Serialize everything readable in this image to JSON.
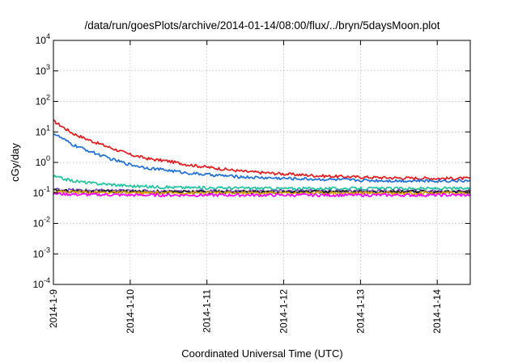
{
  "chart_data": {
    "type": "line",
    "title": "/data/run/goesPlots/archive/2014-01-14/08:00/flux/../bryn/5daysMoon.plot",
    "xlabel": "Coordinated Universal Time (UTC)",
    "ylabel": "cGy/day",
    "yscale": "log",
    "ylim": [
      0.0001,
      10000
    ],
    "xlim": [
      0,
      5.43
    ],
    "grid": true,
    "legend": "none",
    "x_ticks": [
      {
        "value": 0,
        "label": "2014-1-9"
      },
      {
        "value": 1,
        "label": "2014-1-10"
      },
      {
        "value": 2,
        "label": "2014-1-11"
      },
      {
        "value": 3,
        "label": "2014-1-12"
      },
      {
        "value": 4,
        "label": "2014-1-13"
      },
      {
        "value": 5,
        "label": "2014-1-14"
      }
    ],
    "y_ticks": [
      {
        "value": 0.0001,
        "base": "10",
        "exp": "-4"
      },
      {
        "value": 0.001,
        "base": "10",
        "exp": "-3"
      },
      {
        "value": 0.01,
        "base": "10",
        "exp": "-2"
      },
      {
        "value": 0.1,
        "base": "10",
        "exp": "-1"
      },
      {
        "value": 1,
        "base": "10",
        "exp": "0"
      },
      {
        "value": 10,
        "base": "10",
        "exp": "1"
      },
      {
        "value": 100,
        "base": "10",
        "exp": "2"
      },
      {
        "value": 1000,
        "base": "10",
        "exp": "3"
      },
      {
        "value": 10000,
        "base": "10",
        "exp": "4"
      }
    ],
    "x": [
      0,
      0.25,
      0.5,
      0.75,
      1,
      1.25,
      1.5,
      1.75,
      2,
      2.5,
      3,
      3.5,
      4,
      4.5,
      5,
      5.43
    ],
    "series": [
      {
        "color": "#e41a1c",
        "values": [
          23,
          9,
          5,
          3,
          1.8,
          1.3,
          1.1,
          0.85,
          0.7,
          0.5,
          0.42,
          0.36,
          0.33,
          0.31,
          0.3,
          0.3
        ]
      },
      {
        "color": "#1f6fd8",
        "values": [
          9,
          3.8,
          2.2,
          1.3,
          0.85,
          0.65,
          0.55,
          0.45,
          0.4,
          0.33,
          0.3,
          0.28,
          0.26,
          0.25,
          0.25,
          0.25
        ]
      },
      {
        "color": "#1fc4a0",
        "values": [
          0.35,
          0.25,
          0.21,
          0.19,
          0.17,
          0.16,
          0.155,
          0.15,
          0.148,
          0.145,
          0.14,
          0.14,
          0.14,
          0.14,
          0.14,
          0.14
        ]
      },
      {
        "color": "#7a4bb8",
        "values": [
          0.13,
          0.125,
          0.12,
          0.12,
          0.118,
          0.115,
          0.115,
          0.115,
          0.115,
          0.115,
          0.115,
          0.115,
          0.115,
          0.115,
          0.115,
          0.115
        ]
      },
      {
        "color": "#1c1c1c",
        "values": [
          0.12,
          0.115,
          0.112,
          0.11,
          0.11,
          0.108,
          0.108,
          0.108,
          0.108,
          0.108,
          0.108,
          0.108,
          0.108,
          0.108,
          0.108,
          0.108
        ]
      },
      {
        "color": "#d9a400",
        "values": [
          0.11,
          0.108,
          0.105,
          0.103,
          0.1,
          0.1,
          0.1,
          0.1,
          0.1,
          0.1,
          0.1,
          0.1,
          0.1,
          0.1,
          0.1,
          0.1
        ]
      },
      {
        "color": "#ff00ff",
        "values": [
          0.095,
          0.09,
          0.088,
          0.087,
          0.085,
          0.085,
          0.085,
          0.085,
          0.085,
          0.085,
          0.085,
          0.085,
          0.085,
          0.085,
          0.085,
          0.085
        ]
      }
    ]
  }
}
